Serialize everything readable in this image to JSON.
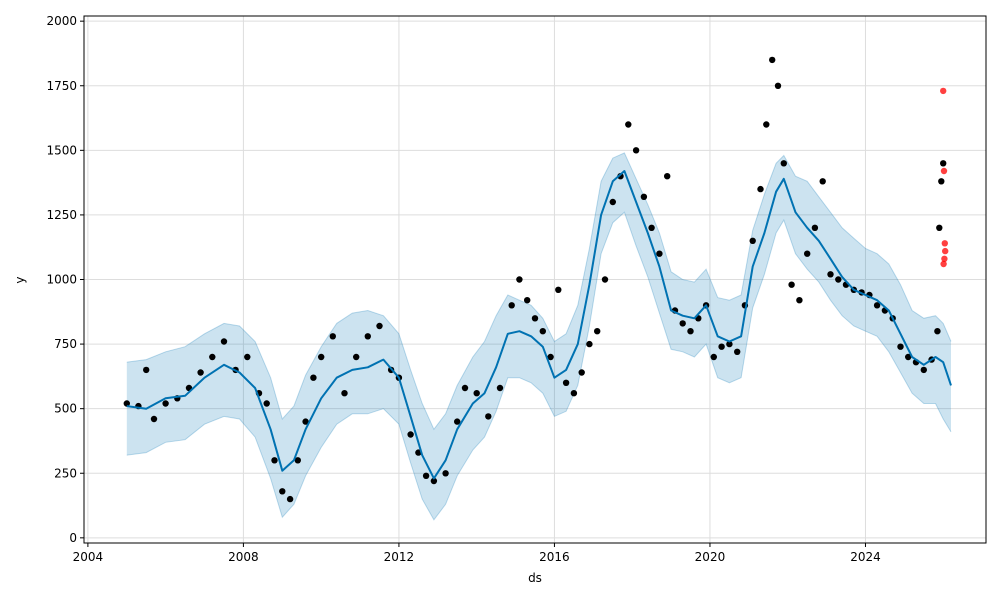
{
  "chart_data": {
    "type": "line",
    "xlabel": "ds",
    "ylabel": "y",
    "xlim": [
      2003.9,
      2027.1
    ],
    "ylim": [
      -20,
      2020
    ],
    "grid": true,
    "x_ticks": [
      2004,
      2008,
      2012,
      2016,
      2020,
      2024
    ],
    "y_ticks": [
      0,
      250,
      500,
      750,
      1000,
      1250,
      1500,
      1750,
      2000
    ],
    "colors": {
      "forecast": "#0072b2",
      "band": "#0072b2",
      "observed": "#000000",
      "outliers": "#ff0000"
    },
    "series": [
      {
        "kind": "forecast",
        "x": [
          2005.0,
          2005.5,
          2006.0,
          2006.5,
          2007.0,
          2007.5,
          2007.9,
          2008.3,
          2008.7,
          2009.0,
          2009.3,
          2009.6,
          2010.0,
          2010.4,
          2010.8,
          2011.2,
          2011.6,
          2012.0,
          2012.3,
          2012.6,
          2012.9,
          2013.2,
          2013.5,
          2013.9,
          2014.2,
          2014.5,
          2014.8,
          2015.1,
          2015.4,
          2015.7,
          2016.0,
          2016.3,
          2016.6,
          2016.9,
          2017.2,
          2017.5,
          2017.8,
          2018.1,
          2018.4,
          2018.7,
          2019.0,
          2019.3,
          2019.6,
          2019.9,
          2020.2,
          2020.5,
          2020.8,
          2021.1,
          2021.4,
          2021.7,
          2021.9,
          2022.2,
          2022.5,
          2022.8,
          2023.1,
          2023.4,
          2023.7,
          2024.0,
          2024.3,
          2024.6,
          2024.9,
          2025.2,
          2025.5,
          2025.8,
          2026.0,
          2026.2
        ],
        "y": [
          510,
          500,
          540,
          550,
          620,
          670,
          640,
          580,
          420,
          260,
          300,
          420,
          540,
          620,
          650,
          660,
          690,
          620,
          470,
          320,
          230,
          300,
          420,
          520,
          560,
          660,
          790,
          800,
          780,
          740,
          620,
          650,
          750,
          980,
          1250,
          1380,
          1420,
          1300,
          1180,
          1050,
          880,
          860,
          850,
          900,
          780,
          760,
          780,
          1050,
          1180,
          1340,
          1390,
          1260,
          1200,
          1150,
          1080,
          1010,
          960,
          940,
          920,
          880,
          790,
          700,
          670,
          700,
          680,
          590
        ]
      },
      {
        "kind": "band-upper",
        "x": [
          2005.0,
          2005.5,
          2006.0,
          2006.5,
          2007.0,
          2007.5,
          2007.9,
          2008.3,
          2008.7,
          2009.0,
          2009.3,
          2009.6,
          2010.0,
          2010.4,
          2010.8,
          2011.2,
          2011.6,
          2012.0,
          2012.3,
          2012.6,
          2012.9,
          2013.2,
          2013.5,
          2013.9,
          2014.2,
          2014.5,
          2014.8,
          2015.1,
          2015.4,
          2015.7,
          2016.0,
          2016.3,
          2016.6,
          2016.9,
          2017.2,
          2017.5,
          2017.8,
          2018.1,
          2018.4,
          2018.7,
          2019.0,
          2019.3,
          2019.6,
          2019.9,
          2020.2,
          2020.5,
          2020.8,
          2021.1,
          2021.4,
          2021.7,
          2021.9,
          2022.2,
          2022.5,
          2022.8,
          2023.1,
          2023.4,
          2023.7,
          2024.0,
          2024.3,
          2024.6,
          2024.9,
          2025.2,
          2025.5,
          2025.8,
          2026.0,
          2026.2
        ],
        "y": [
          680,
          690,
          720,
          740,
          790,
          830,
          820,
          760,
          620,
          460,
          510,
          630,
          740,
          830,
          870,
          880,
          860,
          790,
          650,
          520,
          420,
          480,
          590,
          700,
          760,
          860,
          940,
          920,
          900,
          850,
          760,
          790,
          900,
          1120,
          1380,
          1470,
          1490,
          1390,
          1290,
          1180,
          1030,
          1000,
          990,
          1040,
          930,
          920,
          940,
          1190,
          1330,
          1450,
          1480,
          1400,
          1380,
          1320,
          1260,
          1200,
          1160,
          1120,
          1100,
          1060,
          980,
          880,
          850,
          860,
          830,
          760
        ]
      },
      {
        "kind": "band-lower",
        "x": [
          2005.0,
          2005.5,
          2006.0,
          2006.5,
          2007.0,
          2007.5,
          2007.9,
          2008.3,
          2008.7,
          2009.0,
          2009.3,
          2009.6,
          2010.0,
          2010.4,
          2010.8,
          2011.2,
          2011.6,
          2012.0,
          2012.3,
          2012.6,
          2012.9,
          2013.2,
          2013.5,
          2013.9,
          2014.2,
          2014.5,
          2014.8,
          2015.1,
          2015.4,
          2015.7,
          2016.0,
          2016.3,
          2016.6,
          2016.9,
          2017.2,
          2017.5,
          2017.8,
          2018.1,
          2018.4,
          2018.7,
          2019.0,
          2019.3,
          2019.6,
          2019.9,
          2020.2,
          2020.5,
          2020.8,
          2021.1,
          2021.4,
          2021.7,
          2021.9,
          2022.2,
          2022.5,
          2022.8,
          2023.1,
          2023.4,
          2023.7,
          2024.0,
          2024.3,
          2024.6,
          2024.9,
          2025.2,
          2025.5,
          2025.8,
          2026.0,
          2026.2
        ],
        "y": [
          320,
          330,
          370,
          380,
          440,
          470,
          460,
          390,
          230,
          80,
          130,
          240,
          350,
          440,
          480,
          480,
          500,
          440,
          290,
          150,
          70,
          130,
          240,
          340,
          390,
          490,
          620,
          620,
          600,
          560,
          470,
          490,
          590,
          820,
          1100,
          1220,
          1260,
          1130,
          1010,
          870,
          730,
          720,
          700,
          750,
          620,
          600,
          620,
          890,
          1020,
          1180,
          1230,
          1100,
          1040,
          990,
          920,
          860,
          820,
          800,
          780,
          720,
          640,
          560,
          520,
          520,
          460,
          410
        ]
      },
      {
        "kind": "observed",
        "x": [
          2005.0,
          2005.3,
          2005.5,
          2005.7,
          2006.0,
          2006.3,
          2006.6,
          2006.9,
          2007.2,
          2007.5,
          2007.8,
          2008.1,
          2008.4,
          2008.6,
          2008.8,
          2009.0,
          2009.2,
          2009.4,
          2009.6,
          2009.8,
          2010.0,
          2010.3,
          2010.6,
          2010.9,
          2011.2,
          2011.5,
          2011.8,
          2012.0,
          2012.3,
          2012.5,
          2012.7,
          2012.9,
          2013.2,
          2013.5,
          2013.7,
          2014.0,
          2014.3,
          2014.6,
          2014.9,
          2015.1,
          2015.3,
          2015.5,
          2015.7,
          2015.9,
          2016.1,
          2016.3,
          2016.5,
          2016.7,
          2016.9,
          2017.1,
          2017.3,
          2017.5,
          2017.7,
          2017.9,
          2018.1,
          2018.3,
          2018.5,
          2018.7,
          2018.9,
          2019.1,
          2019.3,
          2019.5,
          2019.7,
          2019.9,
          2020.1,
          2020.3,
          2020.5,
          2020.7,
          2020.9,
          2021.1,
          2021.3,
          2021.45,
          2021.6,
          2021.75,
          2021.9,
          2022.1,
          2022.3,
          2022.5,
          2022.7,
          2022.9,
          2023.1,
          2023.3,
          2023.5,
          2023.7,
          2023.9,
          2024.1,
          2024.3,
          2024.5,
          2024.7,
          2024.9,
          2025.1,
          2025.3,
          2025.5,
          2025.7,
          2025.85,
          2025.9,
          2025.95,
          2026.0
        ],
        "y": [
          520,
          510,
          650,
          460,
          520,
          540,
          580,
          640,
          700,
          760,
          650,
          700,
          560,
          520,
          300,
          180,
          150,
          300,
          450,
          620,
          700,
          780,
          560,
          700,
          780,
          820,
          650,
          620,
          400,
          330,
          240,
          220,
          250,
          450,
          580,
          560,
          470,
          580,
          900,
          1000,
          920,
          850,
          800,
          700,
          960,
          600,
          560,
          640,
          750,
          800,
          1000,
          1300,
          1400,
          1600,
          1500,
          1320,
          1200,
          1100,
          1400,
          880,
          830,
          800,
          850,
          900,
          700,
          740,
          750,
          720,
          900,
          1150,
          1350,
          1600,
          1850,
          1750,
          1450,
          980,
          920,
          1100,
          1200,
          1380,
          1020,
          1000,
          980,
          960,
          950,
          940,
          900,
          880,
          850,
          740,
          700,
          680,
          650,
          690,
          800,
          1200,
          1380,
          1450
        ]
      },
      {
        "kind": "outliers",
        "x": [
          2026.0,
          2026.02,
          2026.04,
          2026.05,
          2026.03,
          2026.01
        ],
        "y": [
          1730,
          1420,
          1140,
          1110,
          1080,
          1060
        ]
      }
    ]
  }
}
